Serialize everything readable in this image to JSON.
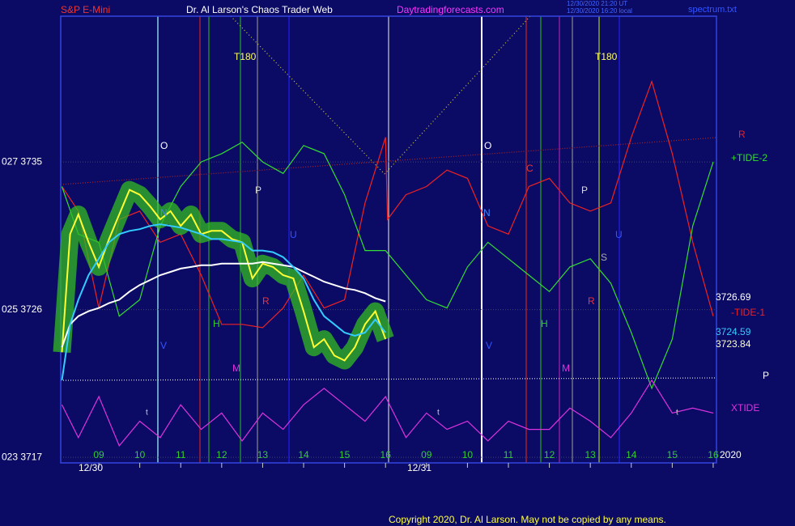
{
  "chart_data": {
    "type": "line",
    "title": "Dr. Al Larson's Chaos Trader Web",
    "header_left": "S&P E-Mini",
    "header_site": "Daytradingforecasts.com",
    "header_time_1": "12/30/2020 21:20 UT",
    "header_time_2": "12/30/2020 16:20 local",
    "header_file": "spectrum.txt",
    "copyright": "Copyright 2020, Dr. Al Larson. May not be copied by any means.",
    "corner_label": "2020",
    "dates": [
      "12/30",
      "12/31"
    ],
    "annotations": [
      "T180",
      "T180",
      "O",
      "O",
      "P",
      "P",
      "N",
      "N",
      "C",
      "U",
      "U",
      "H",
      "H",
      "M",
      "M",
      "V",
      "V",
      "S",
      "R",
      "R",
      "t",
      "t",
      "t",
      "R",
      "P"
    ],
    "xlim": [
      0.07,
      16.08
    ],
    "ylim": [
      3716.66,
      3743.88
    ],
    "xticks": [
      {
        "value": 1,
        "label": "09"
      },
      {
        "value": 2,
        "label": "10"
      },
      {
        "value": 3,
        "label": "11"
      },
      {
        "value": 4,
        "label": "12"
      },
      {
        "value": 5,
        "label": "13"
      },
      {
        "value": 6,
        "label": "14"
      },
      {
        "value": 7,
        "label": "15"
      },
      {
        "value": 8,
        "label": "16"
      },
      {
        "value": 9,
        "label": "09"
      },
      {
        "value": 10,
        "label": "10"
      },
      {
        "value": 11,
        "label": "11"
      },
      {
        "value": 12,
        "label": "12"
      },
      {
        "value": 13,
        "label": "13"
      },
      {
        "value": 14,
        "label": "14"
      },
      {
        "value": 15,
        "label": "15"
      },
      {
        "value": 16,
        "label": "16"
      }
    ],
    "yticks": [
      {
        "value": 3735,
        "label": "027  3735"
      },
      {
        "value": 3726,
        "label": "025  3726"
      },
      {
        "value": 3717,
        "label": "023  3717"
      }
    ],
    "grid": true,
    "series": [
      {
        "color": "#ffff33",
        "end_label": 3723.84,
        "x": [
          0.1,
          0.3,
          0.5,
          0.75,
          1.0,
          1.25,
          1.5,
          1.75,
          2.0,
          2.25,
          2.5,
          2.75,
          3.0,
          3.25,
          3.5,
          3.75,
          4.0,
          4.25,
          4.5,
          4.75,
          5.0,
          5.25,
          5.5,
          5.75,
          6.0,
          6.25,
          6.5,
          6.75,
          7.0,
          7.25,
          7.5,
          7.75,
          8.0
        ],
        "values": [
          3723.4,
          3730.6,
          3731.8,
          3730.1,
          3728.6,
          3730.3,
          3731.8,
          3733.3,
          3733.0,
          3732.3,
          3731.5,
          3732.0,
          3731.1,
          3731.8,
          3730.6,
          3730.8,
          3730.8,
          3730.3,
          3730.1,
          3727.9,
          3728.8,
          3728.6,
          3728.1,
          3727.9,
          3725.9,
          3723.7,
          3724.2,
          3723.2,
          3722.9,
          3723.7,
          3725.1,
          3725.9,
          3724.2
        ]
      },
      {
        "color": "#33ccff",
        "end_label": 3724.59,
        "x": [
          0.1,
          0.3,
          0.5,
          0.75,
          1.0,
          1.25,
          1.5,
          1.75,
          2.0,
          2.25,
          2.5,
          2.75,
          3.0,
          3.25,
          3.5,
          3.75,
          4.0,
          4.25,
          4.5,
          4.75,
          5.0,
          5.25,
          5.5,
          5.75,
          6.0,
          6.25,
          6.5,
          6.75,
          7.0,
          7.25,
          7.5,
          7.75,
          8.0
        ],
        "values": [
          3721.7,
          3725.1,
          3726.6,
          3728.1,
          3729.1,
          3730.1,
          3730.6,
          3730.8,
          3730.9,
          3731.1,
          3731.2,
          3731.1,
          3731.0,
          3730.8,
          3730.6,
          3730.3,
          3730.3,
          3730.2,
          3730.1,
          3729.6,
          3729.6,
          3729.5,
          3729.2,
          3728.6,
          3727.9,
          3726.6,
          3725.6,
          3725.1,
          3724.6,
          3724.4,
          3724.6,
          3725.4,
          3724.6
        ]
      },
      {
        "color": "#ffffff",
        "end_label": 3726.69,
        "x": [
          0.1,
          0.3,
          0.5,
          0.75,
          1.0,
          1.25,
          1.5,
          1.75,
          2.0,
          2.25,
          2.5,
          2.75,
          3.0,
          3.25,
          3.5,
          3.75,
          4.0,
          4.25,
          4.5,
          4.75,
          5.0,
          5.25,
          5.5,
          5.75,
          6.0,
          6.25,
          6.5,
          6.75,
          7.0,
          7.25,
          7.5,
          7.75,
          8.0
        ],
        "values": [
          3723.7,
          3725.1,
          3725.6,
          3725.9,
          3726.1,
          3726.4,
          3726.6,
          3727.1,
          3727.5,
          3727.8,
          3728.1,
          3728.3,
          3728.5,
          3728.6,
          3728.7,
          3728.7,
          3728.8,
          3728.8,
          3728.8,
          3728.8,
          3728.9,
          3728.8,
          3728.7,
          3728.6,
          3728.3,
          3728.0,
          3727.7,
          3727.5,
          3727.3,
          3727.2,
          3727.0,
          3726.7,
          3726.5
        ]
      },
      {
        "name": "-TIDE-1",
        "color": "#ee2222",
        "x": [
          0.1,
          0.5,
          1.0,
          1.5,
          2.0,
          2.5,
          3.0,
          3.5,
          4.0,
          4.5,
          5.0,
          5.5,
          6.0,
          6.5,
          7.0,
          7.5,
          8.0,
          8.05,
          8.5,
          9.0,
          9.5,
          10.0,
          10.5,
          11.0,
          11.5,
          12.0,
          12.5,
          13.0,
          13.5,
          14.0,
          14.5,
          15.0,
          15.5,
          16.0
        ],
        "values": [
          3733.5,
          3732.0,
          3726.1,
          3731.5,
          3732.0,
          3730.1,
          3730.6,
          3728.1,
          3725.1,
          3725.1,
          3724.9,
          3726.1,
          3728.1,
          3726.1,
          3726.6,
          3732.5,
          3736.5,
          3731.5,
          3733.0,
          3733.5,
          3734.5,
          3734.0,
          3731.1,
          3730.6,
          3733.5,
          3734.0,
          3732.5,
          3732.0,
          3732.5,
          3736.5,
          3739.9,
          3735.5,
          3730.1,
          3725.6
        ]
      },
      {
        "name": "+TIDE-2",
        "color": "#33dd33",
        "x": [
          0.1,
          0.5,
          1.0,
          1.5,
          2.0,
          2.5,
          3.0,
          3.5,
          4.0,
          4.5,
          5.0,
          5.5,
          6.0,
          6.5,
          7.0,
          7.5,
          8.0,
          8.5,
          9.0,
          9.5,
          10.0,
          10.5,
          11.0,
          11.5,
          12.0,
          12.5,
          13.0,
          13.5,
          14.0,
          14.5,
          15.0,
          15.5,
          16.0
        ],
        "values": [
          3733.5,
          3730.6,
          3730.1,
          3725.6,
          3726.6,
          3731.1,
          3733.5,
          3735.0,
          3735.5,
          3736.2,
          3735.0,
          3734.3,
          3736.0,
          3735.5,
          3733.0,
          3729.6,
          3729.6,
          3728.1,
          3726.6,
          3726.1,
          3728.6,
          3730.1,
          3729.1,
          3728.1,
          3727.1,
          3728.6,
          3729.1,
          3727.6,
          3724.6,
          3721.2,
          3724.2,
          3731.1,
          3735.0
        ]
      },
      {
        "name": "XTIDE",
        "color": "#dd33dd",
        "x": [
          0.1,
          0.5,
          1.0,
          1.5,
          2.0,
          2.5,
          3.0,
          3.5,
          4.0,
          4.5,
          5.0,
          5.5,
          6.0,
          6.5,
          7.0,
          7.5,
          8.0,
          8.5,
          9.0,
          9.5,
          10.0,
          10.5,
          11.0,
          11.5,
          12.0,
          12.5,
          13.0,
          13.5,
          14.0,
          14.5,
          15.0,
          15.5,
          16.0
        ],
        "values": [
          3720.2,
          3718.2,
          3720.7,
          3717.7,
          3719.2,
          3718.2,
          3720.2,
          3718.7,
          3719.7,
          3718.0,
          3719.7,
          3718.7,
          3720.2,
          3721.2,
          3720.2,
          3719.2,
          3720.7,
          3718.2,
          3719.7,
          3718.7,
          3719.2,
          3718.0,
          3719.2,
          3718.7,
          3718.7,
          3720.0,
          3719.2,
          3718.2,
          3719.7,
          3721.7,
          3719.7,
          3720.0,
          3719.7
        ]
      }
    ]
  }
}
